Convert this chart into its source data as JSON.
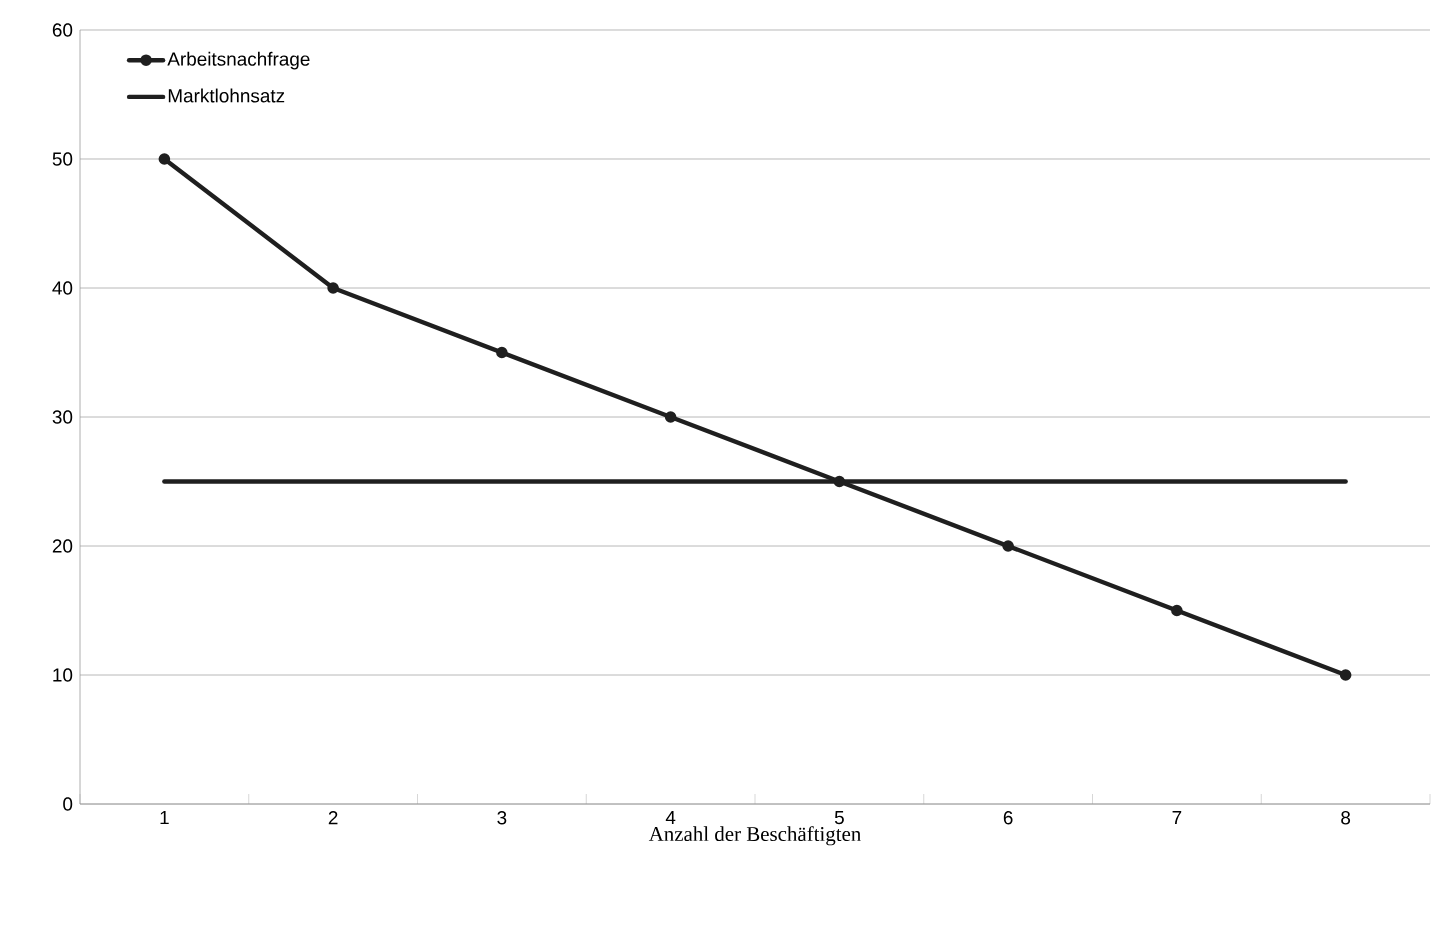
{
  "chart_data": {
    "type": "line",
    "xlabel": "Anzahl der Beschäftigten",
    "categories": [
      "1",
      "2",
      "3",
      "4",
      "5",
      "6",
      "7",
      "8"
    ],
    "series": [
      {
        "name": "Arbeitsnachfrage",
        "color": "#1f1f1f",
        "marker": "circle",
        "values": [
          50,
          40,
          35,
          30,
          25,
          20,
          15,
          10
        ]
      },
      {
        "name": "Marktlohnsatz",
        "color": "#1f1f1f",
        "marker": "none",
        "values": [
          25,
          25,
          25,
          25,
          25,
          25,
          25,
          25
        ]
      }
    ],
    "ylim": [
      0,
      60
    ],
    "yticks": [
      0,
      10,
      20,
      30,
      40,
      50,
      60
    ],
    "grid": "y",
    "legend": "top left",
    "line_style": "solid"
  }
}
